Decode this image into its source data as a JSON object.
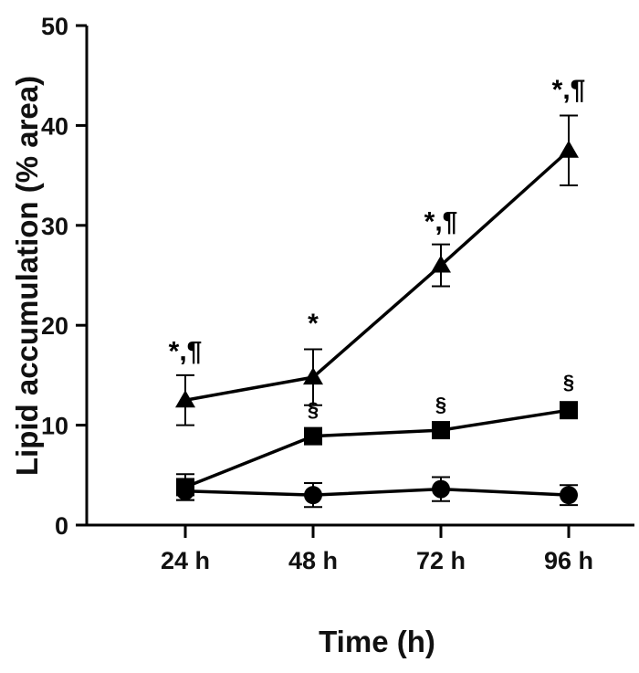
{
  "chart_data": {
    "type": "line",
    "title": "",
    "xlabel": "Time (h)",
    "ylabel": "Lipid accumulation (% area)",
    "categories": [
      "24 h",
      "48 h",
      "72 h",
      "96 h"
    ],
    "ylim": [
      0,
      50
    ],
    "yticks": [
      0,
      10,
      20,
      30,
      40,
      50
    ],
    "grid": false,
    "legend": "none",
    "series": [
      {
        "name": "triangle",
        "marker": "triangle",
        "values": [
          12.5,
          14.8,
          26.0,
          37.5
        ],
        "errors": [
          2.5,
          2.8,
          2.1,
          3.5
        ]
      },
      {
        "name": "square",
        "marker": "square",
        "values": [
          3.8,
          8.9,
          9.5,
          11.5
        ],
        "errors": [
          1.3,
          0.6,
          0.6,
          0.6
        ]
      },
      {
        "name": "circle",
        "marker": "circle",
        "values": [
          3.4,
          3.0,
          3.6,
          3.0
        ],
        "errors": [
          0.9,
          1.2,
          1.2,
          1.0
        ]
      }
    ],
    "annotations": [
      {
        "text": "*,¶",
        "category_index": 0,
        "y": 16.5,
        "series": "triangle"
      },
      {
        "text": "*",
        "category_index": 1,
        "y": 19.3,
        "series": "triangle"
      },
      {
        "text": "*,¶",
        "category_index": 2,
        "y": 29.5,
        "series": "triangle"
      },
      {
        "text": "*,¶",
        "category_index": 3,
        "y": 42.7,
        "series": "triangle"
      },
      {
        "text": "§",
        "category_index": 1,
        "y": 10.9,
        "series": "square"
      },
      {
        "text": "§",
        "category_index": 2,
        "y": 11.4,
        "series": "square"
      },
      {
        "text": "§",
        "category_index": 3,
        "y": 13.6,
        "series": "square"
      }
    ]
  }
}
